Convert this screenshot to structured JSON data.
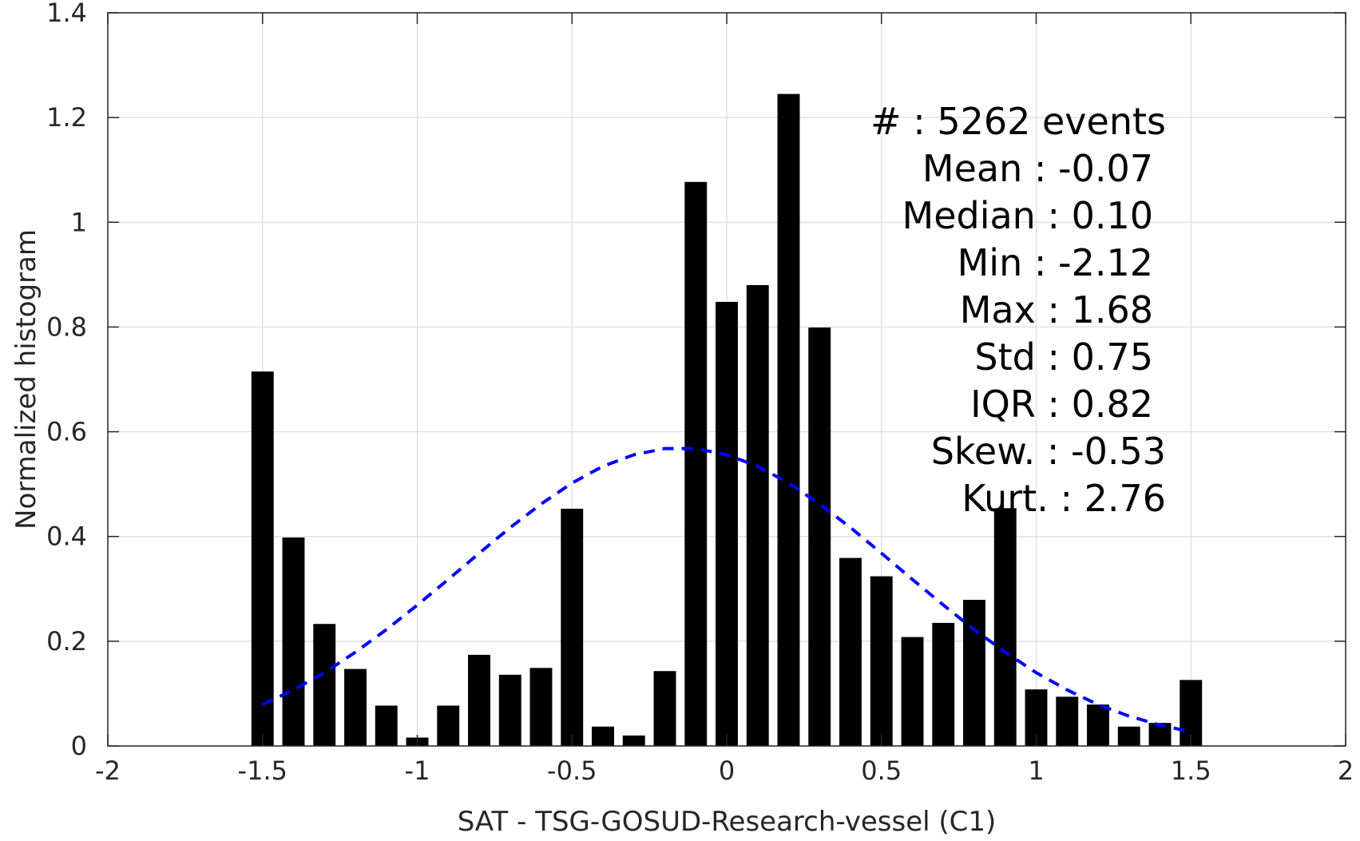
{
  "chart_data": {
    "type": "bar",
    "title": "",
    "xlabel": "SAT - TSG-GOSUD-Research-vessel (C1)",
    "ylabel": "Normalized histogram",
    "xlim": [
      -2,
      2
    ],
    "ylim": [
      0,
      1.4
    ],
    "xticks": [
      "-2",
      "-1.5",
      "-1",
      "-0.5",
      "0",
      "0.5",
      "1",
      "1.5",
      "2"
    ],
    "yticks": [
      "0",
      "0.2",
      "0.4",
      "0.6",
      "0.8",
      "1",
      "1.2",
      "1.4"
    ],
    "grid": true,
    "bar_color": "#000000",
    "bins": {
      "x": [
        -1.5,
        -1.4,
        -1.3,
        -1.2,
        -1.1,
        -1.0,
        -0.9,
        -0.8,
        -0.7,
        -0.6,
        -0.5,
        -0.4,
        -0.3,
        -0.2,
        -0.1,
        0.0,
        0.1,
        0.2,
        0.3,
        0.4,
        0.5,
        0.6,
        0.7,
        0.8,
        0.9,
        1.0,
        1.1,
        1.2,
        1.3,
        1.4,
        1.5
      ],
      "values": [
        0.715,
        0.398,
        0.233,
        0.147,
        0.077,
        0.016,
        0.077,
        0.174,
        0.136,
        0.149,
        0.453,
        0.037,
        0.02,
        0.143,
        1.077,
        0.848,
        0.88,
        1.245,
        0.799,
        0.359,
        0.324,
        0.208,
        0.235,
        0.279,
        0.454,
        0.108,
        0.094,
        0.079,
        0.037,
        0.044,
        0.126
      ]
    },
    "fit_curve": {
      "style": "dashed",
      "color": "#0000ff",
      "x": [
        -1.5,
        -1.4,
        -1.3,
        -1.2,
        -1.1,
        -1.0,
        -0.9,
        -0.8,
        -0.7,
        -0.6,
        -0.5,
        -0.4,
        -0.3,
        -0.2,
        -0.1,
        0.0,
        0.1,
        0.2,
        0.3,
        0.4,
        0.5,
        0.6,
        0.7,
        0.8,
        0.9,
        1.0,
        1.1,
        1.2,
        1.3,
        1.4,
        1.5
      ],
      "values": [
        0.079,
        0.107,
        0.14,
        0.179,
        0.222,
        0.269,
        0.318,
        0.368,
        0.417,
        0.462,
        0.502,
        0.534,
        0.556,
        0.568,
        0.568,
        0.556,
        0.534,
        0.502,
        0.462,
        0.417,
        0.368,
        0.318,
        0.269,
        0.222,
        0.179,
        0.14,
        0.107,
        0.079,
        0.057,
        0.04,
        0.027
      ]
    },
    "annotations": [
      "#  : 5262 events",
      "Mean : -0.07",
      "Median : 0.10",
      "Min : -2.12",
      "Max : 1.68",
      "Std : 0.75",
      "IQR : 0.82",
      "Skew. : -0.53",
      "Kurt. : 2.76"
    ]
  }
}
